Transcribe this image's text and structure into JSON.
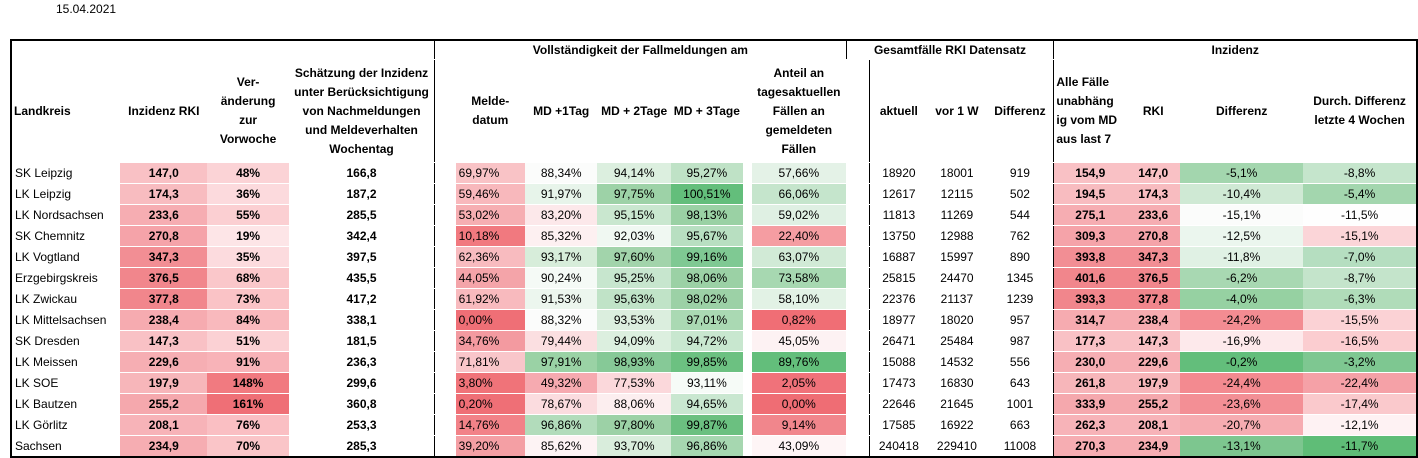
{
  "date": "15.04.2021",
  "headers": {
    "group_vollst": "Vollständigkeit der Fallmeldungen am",
    "group_gesamt": "Gesamtfälle RKI Datensatz",
    "group_inzidenz": "Inzidenz",
    "landkreis": "Landkreis",
    "inzidenz_rki": "Inzidenz RKI",
    "veraenderung": "Ver-änderung zur Vorwoche",
    "schaetzung": "Schätzung der Inzidenz unter Berücksichtigung von Nachmeldungen und Meldeverhalten Wochentag",
    "meldedatum": "Melde-datum",
    "md1": "MD +1Tag",
    "md2": "MD + 2Tage",
    "md3": "MD + 3Tage",
    "anteil": "Anteil an tagesaktuellen Fällen an gemeldeten Fällen",
    "aktuell": "aktuell",
    "vor1w": "vor 1 W",
    "differenz": "Differenz",
    "alle_faelle": "Alle Fälle unabhäng ig vom MD aus last 7",
    "rki": "RKI",
    "diff2": "Differenz",
    "durch_diff": "Durch. Differenz letzte 4 Wochen"
  },
  "rows": [
    {
      "name": "SK Leipzig",
      "inz": "147,0",
      "ver": "48%",
      "sch": "166,8",
      "md0": "69,97%",
      "md1": "88,34%",
      "md2": "94,14%",
      "md3": "95,27%",
      "ant": "57,66%",
      "akt": "18920",
      "vor": "18001",
      "dif": "919",
      "alle": "154,9",
      "rki": "147,0",
      "d2": "-5,1%",
      "dd": "-8,8%",
      "bg": {
        "inz": "#f9c1c5",
        "ver": "#fbd3d6",
        "md0": "#f9c3c6",
        "md1": "#fbfcfb",
        "md2": "#dcefdf",
        "md3": "#bfe2c6",
        "ant": "#e4f2e7",
        "alle": "#f9c1c5",
        "rki": "#f9c1c5",
        "d2": "#a3d6ae",
        "dd": "#c5e5cc"
      }
    },
    {
      "name": "LK Leipzig",
      "inz": "174,3",
      "ver": "36%",
      "sch": "187,2",
      "md0": "59,46%",
      "md1": "91,97%",
      "md2": "97,75%",
      "md3": "100,51%",
      "ant": "66,06%",
      "akt": "12617",
      "vor": "12115",
      "dif": "502",
      "alle": "194,5",
      "rki": "174,3",
      "d2": "-10,4%",
      "dd": "-5,4%",
      "bg": {
        "inz": "#f8bcc0",
        "ver": "#fcdadd",
        "md0": "#f8b8bc",
        "md1": "#e7f4ea",
        "md2": "#9dd2a7",
        "md3": "#63be7b",
        "ant": "#c5e5cc",
        "alle": "#f8bcc0",
        "rki": "#f8bcc0",
        "d2": "#cfe9d4",
        "dd": "#a3d6ae"
      }
    },
    {
      "name": "LK Nordsachsen",
      "inz": "233,6",
      "ver": "55%",
      "sch": "285,5",
      "md0": "53,02%",
      "md1": "83,20%",
      "md2": "95,15%",
      "md3": "98,13%",
      "ant": "59,02%",
      "akt": "11813",
      "vor": "11269",
      "dif": "544",
      "alle": "275,1",
      "rki": "233,6",
      "d2": "-15,1%",
      "dd": "-11,5%",
      "bg": {
        "inz": "#f6adb2",
        "ver": "#fbcfd2",
        "md0": "#f6aeb2",
        "md1": "#fce8ea",
        "md2": "#c9e7cf",
        "md3": "#9ad1a4",
        "ant": "#dff0e3",
        "alle": "#f6adb2",
        "rki": "#f6adb2",
        "d2": "#fbfcfb",
        "dd": "#fefefe"
      }
    },
    {
      "name": "SK Chemnitz",
      "inz": "270,8",
      "ver": "19%",
      "sch": "342,4",
      "md0": "10,18%",
      "md1": "85,32%",
      "md2": "92,03%",
      "md3": "95,67%",
      "ant": "22,40%",
      "akt": "13750",
      "vor": "12988",
      "dif": "762",
      "alle": "309,3",
      "rki": "270,8",
      "d2": "-12,5%",
      "dd": "-15,1%",
      "bg": {
        "inz": "#f5a3a9",
        "ver": "#fde5e7",
        "md0": "#f1797f",
        "md1": "#fdf0f1",
        "md2": "#f0f8f2",
        "md3": "#b8dfc1",
        "ant": "#f59da2",
        "alle": "#f5a3a9",
        "rki": "#f5a3a9",
        "d2": "#ebf6ee",
        "dd": "#fbd5d8"
      }
    },
    {
      "name": "LK Vogtland",
      "inz": "347,3",
      "ver": "35%",
      "sch": "397,5",
      "md0": "62,36%",
      "md1": "93,17%",
      "md2": "97,60%",
      "md3": "99,16%",
      "ant": "63,07%",
      "akt": "16887",
      "vor": "15997",
      "dif": "890",
      "alle": "393,8",
      "rki": "347,3",
      "d2": "-11,8%",
      "dd": "-7,0%",
      "bg": {
        "inz": "#f28e94",
        "ver": "#fcdbde",
        "md0": "#f8bbbf",
        "md1": "#d7edda",
        "md2": "#a2d4ab",
        "md3": "#7fc993",
        "ant": "#d1eaD6",
        "alle": "#f28e94",
        "rki": "#f28e94",
        "d2": "#e0f1e4",
        "dd": "#b5dec0"
      }
    },
    {
      "name": "Erzgebirgskreis",
      "inz": "376,5",
      "ver": "68%",
      "sch": "435,5",
      "md0": "44,05%",
      "md1": "90,24%",
      "md2": "95,25%",
      "md3": "98,06%",
      "ant": "73,58%",
      "akt": "25815",
      "vor": "24470",
      "dif": "1345",
      "alle": "401,6",
      "rki": "376,5",
      "d2": "-6,2%",
      "dd": "-8,7%",
      "bg": {
        "inz": "#f1868c",
        "ver": "#fac7ca",
        "md0": "#f4a4a9",
        "md1": "#f5faf6",
        "md2": "#c7e6ce",
        "md3": "#9bd1a5",
        "ant": "#a7d8b1",
        "alle": "#f1868c",
        "rki": "#f1868c",
        "d2": "#a8d8b2",
        "dd": "#c4e4cb"
      }
    },
    {
      "name": "LK Zwickau",
      "inz": "377,8",
      "ver": "73%",
      "sch": "417,2",
      "md0": "61,92%",
      "md1": "91,53%",
      "md2": "95,63%",
      "md3": "98,02%",
      "ant": "58,10%",
      "akt": "22376",
      "vor": "21137",
      "dif": "1239",
      "alle": "393,3",
      "rki": "377,8",
      "d2": "-4,0%",
      "dd": "-6,3%",
      "bg": {
        "inz": "#f1868c",
        "ver": "#fac3c6",
        "md0": "#f8babe",
        "md1": "#ecf6ee",
        "md2": "#c0e3c7",
        "md3": "#9cd1a6",
        "ant": "#e2f2e5",
        "alle": "#f1868c",
        "rki": "#f1868c",
        "d2": "#96d1a2",
        "dd": "#b0dcb9"
      }
    },
    {
      "name": "LK Mittelsachsen",
      "inz": "238,4",
      "ver": "84%",
      "sch": "338,1",
      "md0": "0,00%",
      "md1": "88,32%",
      "md2": "93,53%",
      "md3": "97,01%",
      "ant": "0,82%",
      "akt": "18977",
      "vor": "18020",
      "dif": "957",
      "alle": "314,7",
      "rki": "238,4",
      "d2": "-24,2%",
      "dd": "-15,5%",
      "bg": {
        "inz": "#f6abb0",
        "ver": "#f9b9bd",
        "md0": "#ef6f76",
        "md1": "#fbfcfb",
        "md2": "#dbeede",
        "md3": "#aad9b3",
        "ant": "#f06e75",
        "alle": "#f6abb0",
        "rki": "#f6abb0",
        "d2": "#f38c92",
        "dd": "#fbd2d5"
      }
    },
    {
      "name": "SK Dresden",
      "inz": "147,3",
      "ver": "51%",
      "sch": "181,5",
      "md0": "34,76%",
      "md1": "79,44%",
      "md2": "94,09%",
      "md3": "94,72%",
      "ant": "45,05%",
      "akt": "26471",
      "vor": "25484",
      "dif": "987",
      "alle": "177,3",
      "rki": "147,3",
      "d2": "-16,9%",
      "dd": "-16,5%",
      "bg": {
        "inz": "#f9c1c5",
        "ver": "#fbd1d4",
        "md0": "#f39aa0",
        "md1": "#fbdfe1",
        "md2": "#dcefdf",
        "md3": "#c8e7cf",
        "ant": "#fdf2f3",
        "alle": "#f9c1c5",
        "rki": "#f9c1c5",
        "d2": "#fde9eb",
        "dd": "#fbcdd0"
      }
    },
    {
      "name": "LK Meissen",
      "inz": "229,6",
      "ver": "91%",
      "sch": "236,3",
      "md0": "71,81%",
      "md1": "97,91%",
      "md2": "98,93%",
      "md3": "99,85%",
      "ant": "89,76%",
      "akt": "15088",
      "vor": "14532",
      "dif": "556",
      "alle": "230,0",
      "rki": "229,6",
      "d2": "-0,2%",
      "dd": "-3,2%",
      "bg": {
        "inz": "#f6aeb3",
        "ver": "#f8b3b8",
        "md0": "#f9c6ca",
        "md1": "#9ad2a5",
        "md2": "#86c997",
        "md3": "#6cc181",
        "ant": "#63be7b",
        "alle": "#f6aeb3",
        "rki": "#f6aeb3",
        "d2": "#63be7b",
        "dd": "#7ec791"
      }
    },
    {
      "name": "LK SOE",
      "inz": "197,9",
      "ver": "148%",
      "sch": "299,6",
      "md0": "3,80%",
      "md1": "49,32%",
      "md2": "77,53%",
      "md3": "93,11%",
      "ant": "2,05%",
      "akt": "17473",
      "vor": "16830",
      "dif": "643",
      "alle": "261,8",
      "rki": "197,9",
      "d2": "-24,4%",
      "dd": "-22,4%",
      "bg": {
        "inz": "#f7b6ba",
        "ver": "#f17a80",
        "md0": "#f07379",
        "md1": "#f6aab0",
        "md2": "#fbd8db",
        "md3": "#f6fbf7",
        "ant": "#f0727a",
        "alle": "#f7b6ba",
        "rki": "#f7b6ba",
        "d2": "#f38a90",
        "dd": "#f5a1a7"
      }
    },
    {
      "name": "LK Bautzen",
      "inz": "255,2",
      "ver": "161%",
      "sch": "360,8",
      "md0": "0,20%",
      "md1": "78,67%",
      "md2": "88,06%",
      "md3": "94,65%",
      "ant": "0,00%",
      "akt": "22646",
      "vor": "21645",
      "dif": "1001",
      "alle": "333,9",
      "rki": "255,2",
      "d2": "-23,6%",
      "dd": "-17,4%",
      "bg": {
        "inz": "#f5a8ad",
        "ver": "#ef6f76",
        "md0": "#ef6f76",
        "md1": "#fbdcdf",
        "md2": "#fceeef",
        "md3": "#c9e7d0",
        "ant": "#ef6d74",
        "alle": "#f5a8ad",
        "rki": "#f5a8ad",
        "d2": "#f38f95",
        "dd": "#fac9cc"
      }
    },
    {
      "name": "LK Görlitz",
      "inz": "208,1",
      "ver": "76%",
      "sch": "253,3",
      "md0": "14,76%",
      "md1": "96,86%",
      "md2": "97,80%",
      "md3": "99,87%",
      "ant": "9,14%",
      "akt": "17585",
      "vor": "16922",
      "dif": "663",
      "alle": "262,3",
      "rki": "208,1",
      "d2": "-20,7%",
      "dd": "-12,1%",
      "bg": {
        "inz": "#f7b3b8",
        "ver": "#fabfc3",
        "md0": "#f28288",
        "md1": "#b2dcbb",
        "md2": "#9cd1a6",
        "md3": "#6bc080",
        "ant": "#f1868c",
        "alle": "#f7b3b8",
        "rki": "#f7b3b8",
        "d2": "#f6acb1",
        "dd": "#fef2f3"
      }
    }
  ],
  "total": {
    "name": "Sachsen",
    "inz": "234,9",
    "ver": "70%",
    "sch": "285,3",
    "md0": "39,20%",
    "md1": "85,62%",
    "md2": "93,70%",
    "md3": "96,86%",
    "ant": "43,09%",
    "akt": "240418",
    "vor": "229410",
    "dif": "11008",
    "alle": "270,3",
    "rki": "234,9",
    "d2": "-13,1%",
    "dd": "-11,7%",
    "bg": {
      "inz": "#f6adb2",
      "ver": "#fac5c8",
      "md0": "#f49fa4",
      "md1": "#fdf3f4",
      "md2": "#d9edDc",
      "md3": "#a6d7b0",
      "ant": "#fef5f6",
      "alle": "#f6adb2",
      "rki": "#f6adb2",
      "d2": "#7dc68f",
      "dd": "#5fbd77"
    }
  }
}
